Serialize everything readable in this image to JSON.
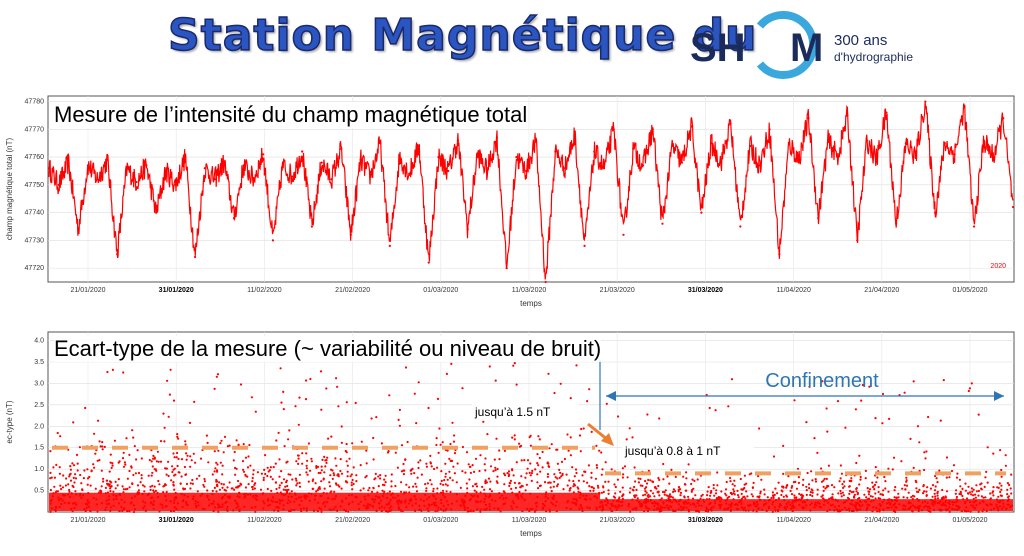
{
  "header": {
    "title": "Station Magnétique du",
    "logo_left": "SH",
    "logo_right": "M",
    "logo_sub1": "300 ans",
    "logo_sub2": "d'hydrographie"
  },
  "colors": {
    "series": "#ff0000",
    "threshold": "#f0a060",
    "annotation": "#2e75b6",
    "arrow": "#ed7d31",
    "logo_ring": "#3aa8dc"
  },
  "chart_data": [
    {
      "type": "line",
      "title": "Mesure de l’intensité du champ magnétique total",
      "xlabel": "temps",
      "ylabel": "champ magnétique total (nT)",
      "ylim": [
        47715,
        47782
      ],
      "yticks": [
        47720,
        47730,
        47740,
        47750,
        47760,
        47770,
        47780
      ],
      "xticks": [
        "21/01/2020",
        "31/01/2020",
        "11/02/2020",
        "21/02/2020",
        "01/03/2020",
        "11/03/2020",
        "21/03/2020",
        "31/03/2020",
        "11/04/2020",
        "21/04/2020",
        "01/05/2020"
      ],
      "xticks_bold": [
        "31/01/2020",
        "31/03/2020"
      ],
      "year_label": "2020",
      "series": [
        {
          "baseline": 47755,
          "values": [
            47756,
            47750,
            47758,
            47734,
            47757,
            47752,
            47759,
            47725,
            47756,
            47751,
            47757,
            47740,
            47755,
            47750,
            47760,
            47724,
            47756,
            47752,
            47758,
            47738,
            47757,
            47752,
            47761,
            47730,
            47757,
            47753,
            47762,
            47735,
            47758,
            47752,
            47763,
            47732,
            47759,
            47753,
            47765,
            47728,
            47760,
            47754,
            47764,
            47722,
            47760,
            47755,
            47766,
            47734,
            47761,
            47755,
            47767,
            47720,
            47760,
            47755,
            47766,
            47715,
            47762,
            47756,
            47768,
            47728,
            47762,
            47756,
            47770,
            47732,
            47763,
            47757,
            47770,
            47736,
            47764,
            47758,
            47771,
            47740,
            47765,
            47758,
            47772,
            47735,
            47764,
            47757,
            47770,
            47725,
            47765,
            47759,
            47774,
            47738,
            47766,
            47760,
            47775,
            47730,
            47766,
            47759,
            47776,
            47736,
            47765,
            47760,
            47780,
            47740,
            47765,
            47761,
            47778,
            47735,
            47766,
            47760,
            47774,
            47742
          ]
        }
      ]
    },
    {
      "type": "scatter",
      "title": "Ecart-type de la mesure (~ variabilité ou niveau de bruit)",
      "xlabel": "temps",
      "ylabel": "ec-type (nT)",
      "ylim": [
        0,
        4.2
      ],
      "yticks": [
        0.5,
        1.0,
        1.5,
        2.0,
        2.5,
        3.0,
        3.5,
        4.0
      ],
      "xticks": [
        "21/01/2020",
        "31/01/2020",
        "11/02/2020",
        "21/02/2020",
        "01/03/2020",
        "11/03/2020",
        "21/03/2020",
        "31/03/2020",
        "11/04/2020",
        "21/04/2020",
        "01/05/2020"
      ],
      "xticks_bold": [
        "31/01/2020",
        "31/03/2020"
      ],
      "before_level": 1.5,
      "after_level": 0.9,
      "annotations": {
        "confinement": "Confinement",
        "before": "jusqu’à 1.5 nT",
        "after": "jusqu’à 0.8 à 1 nT"
      }
    }
  ]
}
